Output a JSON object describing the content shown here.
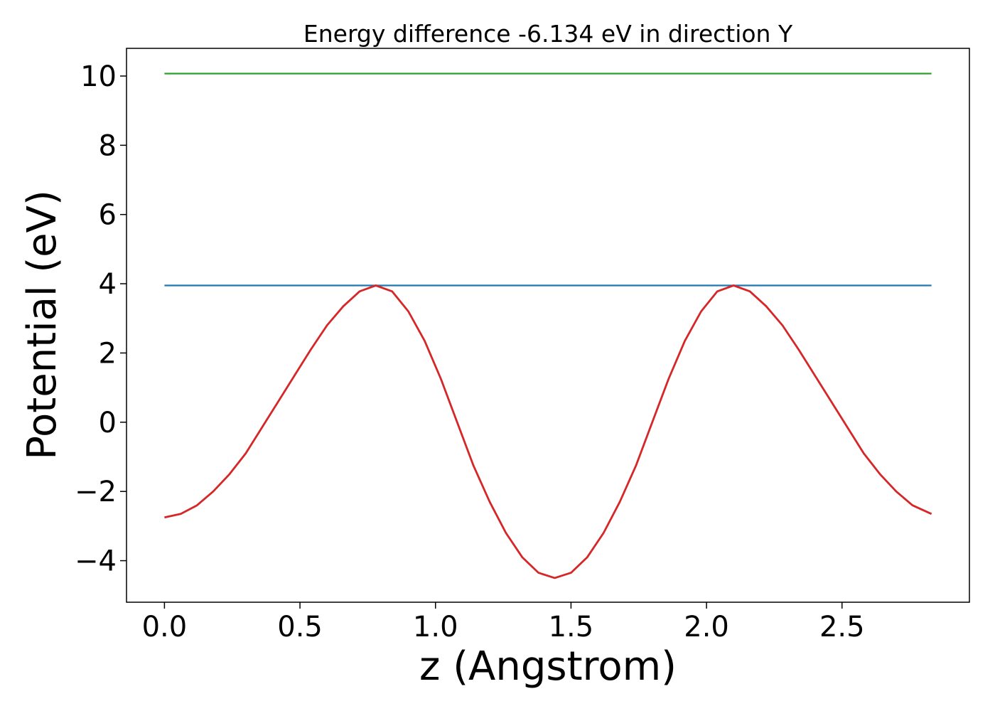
{
  "chart_data": {
    "type": "line",
    "title": "Energy difference -6.134 eV in direction Y",
    "xlabel": "z (Angstrom)",
    "ylabel": "Potential (eV)",
    "xlim": [
      -0.14,
      2.97
    ],
    "ylim": [
      -5.2,
      10.8
    ],
    "xticks": [
      0.0,
      0.5,
      1.0,
      1.5,
      2.0,
      2.5
    ],
    "xtick_labels": [
      "0.0",
      "0.5",
      "1.0",
      "1.5",
      "2.0",
      "2.5"
    ],
    "yticks": [
      -4,
      -2,
      0,
      2,
      4,
      6,
      8,
      10
    ],
    "ytick_labels": [
      "−4",
      "−2",
      "0",
      "2",
      "4",
      "6",
      "8",
      "10"
    ],
    "grid": false,
    "series": [
      {
        "color": "#2ca02c",
        "x": [
          0.0,
          2.83
        ],
        "y": [
          10.07,
          10.07
        ]
      },
      {
        "color": "#1f77b4",
        "x": [
          0.0,
          2.83
        ],
        "y": [
          3.95,
          3.95
        ]
      },
      {
        "color": "#d62728",
        "x": [
          0.0,
          0.06,
          0.12,
          0.18,
          0.24,
          0.3,
          0.36,
          0.42,
          0.48,
          0.54,
          0.6,
          0.66,
          0.72,
          0.78,
          0.84,
          0.9,
          0.96,
          1.02,
          1.08,
          1.14,
          1.2,
          1.26,
          1.32,
          1.38,
          1.44,
          1.5,
          1.56,
          1.62,
          1.68,
          1.74,
          1.8,
          1.86,
          1.92,
          1.98,
          2.04,
          2.1,
          2.16,
          2.22,
          2.28,
          2.34,
          2.4,
          2.46,
          2.52,
          2.58,
          2.64,
          2.7,
          2.76,
          2.83
        ],
        "y": [
          -2.75,
          -2.65,
          -2.4,
          -2.0,
          -1.5,
          -0.9,
          -0.15,
          0.6,
          1.35,
          2.1,
          2.8,
          3.35,
          3.78,
          3.95,
          3.78,
          3.2,
          2.35,
          1.25,
          0.0,
          -1.25,
          -2.3,
          -3.2,
          -3.9,
          -4.35,
          -4.5,
          -4.35,
          -3.9,
          -3.2,
          -2.3,
          -1.25,
          0.0,
          1.25,
          2.35,
          3.2,
          3.78,
          3.95,
          3.78,
          3.35,
          2.8,
          2.1,
          1.35,
          0.6,
          -0.15,
          -0.9,
          -1.5,
          -2.0,
          -2.4,
          -2.65
        ]
      }
    ]
  }
}
